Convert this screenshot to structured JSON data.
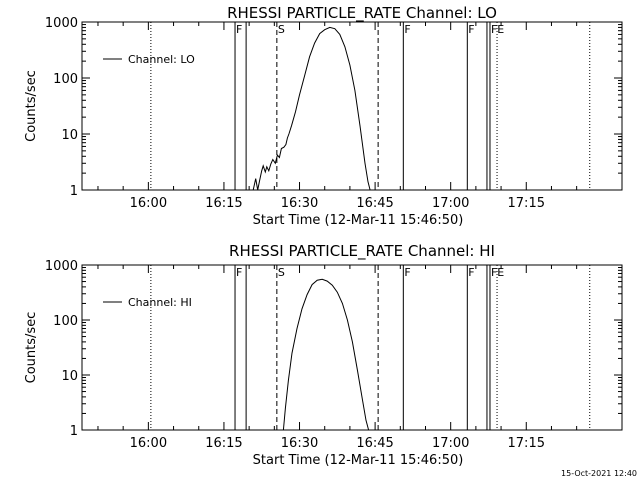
{
  "chart_data": [
    {
      "type": "line",
      "title": "RHESSI PARTICLE_RATE Channel: LO",
      "xlabel": "Start Time (12-Mar-11 15:46:50)",
      "ylabel": "Counts/sec",
      "x_tick_labels": [
        "16:00",
        "16:15",
        "16:30",
        "16:45",
        "17:00",
        "17:15"
      ],
      "x_tick_minutes": [
        960,
        975,
        990,
        1005,
        1020,
        1035
      ],
      "xlim_minutes": [
        946.83,
        1054
      ],
      "y_scale": "log",
      "ylim": [
        1,
        1000
      ],
      "y_tick_labels": [
        "1",
        "10",
        "100",
        "1000"
      ],
      "y_tick_values": [
        1,
        10,
        100,
        1000
      ],
      "legend": {
        "position": "top-left",
        "entries": [
          "Channel: LO"
        ]
      },
      "series": [
        {
          "name": "Channel: LO",
          "x": [
            980.8,
            981.3,
            981.7,
            982.1,
            982.5,
            982.8,
            983.2,
            983.5,
            983.9,
            984.3,
            984.7,
            985.2,
            985.6,
            986.0,
            986.4,
            986.9,
            987.3,
            987.6,
            987.9,
            988.4,
            989.2,
            990.0,
            991.0,
            992.0,
            993.0,
            994.0,
            995.0,
            996.0,
            997.0,
            998.0,
            999.0,
            1000.0,
            1001.0,
            1002.0,
            1003.0,
            1003.6,
            1004.0
          ],
          "y": [
            1.0,
            1.6,
            1.0,
            1.5,
            2.2,
            2.7,
            2.1,
            2.6,
            2.2,
            2.9,
            3.5,
            3.0,
            4.2,
            3.8,
            5.5,
            5.8,
            6.5,
            8.5,
            10,
            14,
            25,
            50,
            110,
            240,
            420,
            620,
            730,
            800,
            760,
            600,
            360,
            170,
            60,
            14,
            3.0,
            1.4,
            1.0
          ]
        }
      ],
      "vertical_markers": [
        {
          "x": 960.5,
          "style": "dotted",
          "label": ""
        },
        {
          "x": 977.2,
          "style": "solid",
          "label": "F"
        },
        {
          "x": 979.4,
          "style": "solid",
          "label": ""
        },
        {
          "x": 985.5,
          "style": "dashed",
          "label": "S"
        },
        {
          "x": 1005.6,
          "style": "dashed",
          "label": ""
        },
        {
          "x": 1010.6,
          "style": "solid",
          "label": "F"
        },
        {
          "x": 1023.3,
          "style": "solid",
          "label": "F"
        },
        {
          "x": 1027.2,
          "style": "solid",
          "label": ""
        },
        {
          "x": 1027.8,
          "style": "solid",
          "label": "FE"
        },
        {
          "x": 1029.2,
          "style": "dotted",
          "label": ""
        },
        {
          "x": 1047.6,
          "style": "dotted",
          "label": ""
        }
      ]
    },
    {
      "type": "line",
      "title": "RHESSI PARTICLE_RATE Channel: HI",
      "xlabel": "Start Time (12-Mar-11 15:46:50)",
      "ylabel": "Counts/sec",
      "x_tick_labels": [
        "16:00",
        "16:15",
        "16:30",
        "16:45",
        "17:00",
        "17:15"
      ],
      "x_tick_minutes": [
        960,
        975,
        990,
        1005,
        1020,
        1035
      ],
      "xlim_minutes": [
        946.83,
        1054
      ],
      "y_scale": "log",
      "ylim": [
        1,
        1000
      ],
      "y_tick_labels": [
        "1",
        "10",
        "100",
        "1000"
      ],
      "y_tick_values": [
        1,
        10,
        100,
        1000
      ],
      "legend": {
        "position": "top-left",
        "entries": [
          "Channel: HI"
        ]
      },
      "series": [
        {
          "name": "Channel: HI",
          "x": [
            986.8,
            987.2,
            987.8,
            988.5,
            989.5,
            990.5,
            991.5,
            992.5,
            993.5,
            994.5,
            995.5,
            996.5,
            997.5,
            998.5,
            999.5,
            1000.5,
            1001.5,
            1002.5,
            1003.2,
            1003.7
          ],
          "y": [
            1.0,
            2.5,
            8,
            25,
            70,
            160,
            290,
            440,
            530,
            550,
            510,
            430,
            320,
            200,
            100,
            40,
            12,
            3.5,
            1.5,
            1.0
          ]
        }
      ],
      "vertical_markers": [
        {
          "x": 960.5,
          "style": "dotted",
          "label": ""
        },
        {
          "x": 977.2,
          "style": "solid",
          "label": "F"
        },
        {
          "x": 979.4,
          "style": "solid",
          "label": ""
        },
        {
          "x": 985.5,
          "style": "dashed",
          "label": "S"
        },
        {
          "x": 1005.6,
          "style": "dashed",
          "label": ""
        },
        {
          "x": 1010.6,
          "style": "solid",
          "label": "F"
        },
        {
          "x": 1023.3,
          "style": "solid",
          "label": "F"
        },
        {
          "x": 1027.2,
          "style": "solid",
          "label": ""
        },
        {
          "x": 1027.8,
          "style": "solid",
          "label": "FE"
        },
        {
          "x": 1029.2,
          "style": "dotted",
          "label": ""
        },
        {
          "x": 1047.6,
          "style": "dotted",
          "label": ""
        }
      ]
    }
  ],
  "timestamp": "15-Oct-2021 12:40",
  "colors": {
    "background": "#ffffff",
    "foreground": "#000000"
  }
}
